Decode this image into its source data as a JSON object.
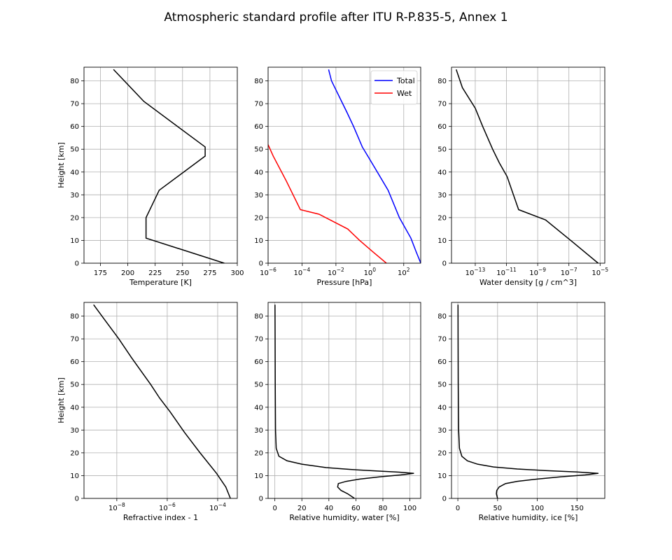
{
  "figure": {
    "title": "Atmospheric standard profile after ITU R-P.835-5, Annex 1"
  },
  "colors": {
    "black": "#000000",
    "total": "#0000ff",
    "wet": "#ff0000",
    "grid": "#b0b0b0"
  },
  "chart_data": [
    {
      "type": "line",
      "id": "temperature",
      "xlabel": "Temperature [K]",
      "ylabel": "Height [km]",
      "xscale": "linear",
      "xlim": [
        160,
        300
      ],
      "ylim": [
        0,
        86
      ],
      "grid": true,
      "xticks": [
        175,
        200,
        225,
        250,
        275,
        300
      ],
      "xticklabels": [
        "175",
        "200",
        "225",
        "250",
        "275",
        "300"
      ],
      "yticks": [
        0,
        10,
        20,
        30,
        40,
        50,
        60,
        70,
        80
      ],
      "yticklabels": [
        "0",
        "10",
        "20",
        "30",
        "40",
        "50",
        "60",
        "70",
        "80"
      ],
      "series": [
        {
          "color": "#000000",
          "x": [
            288.15,
            216.65,
            216.65,
            228.65,
            270.65,
            270.65,
            214.65,
            186.95
          ],
          "y": [
            0,
            11,
            20,
            32,
            47,
            51,
            71,
            85
          ]
        }
      ]
    },
    {
      "type": "line",
      "id": "pressure",
      "xlabel": "Pressure [hPa]",
      "ylabel": "",
      "xscale": "log",
      "xlim": [
        1e-06,
        1000
      ],
      "ylim": [
        0,
        86
      ],
      "grid": true,
      "legend": "top-right",
      "xticks": [
        1e-06,
        0.0001,
        0.01,
        1,
        100
      ],
      "xticklabels": [
        [
          "10",
          "−6"
        ],
        [
          "10",
          "−4"
        ],
        [
          "10",
          "−2"
        ],
        [
          "10",
          "0"
        ],
        [
          "10",
          "2"
        ]
      ],
      "yticks": [
        0,
        10,
        20,
        30,
        40,
        50,
        60,
        70,
        80
      ],
      "yticklabels": [
        "0",
        "10",
        "20",
        "30",
        "40",
        "50",
        "60",
        "70",
        "80"
      ],
      "series": [
        {
          "name": "Total",
          "color": "#0000ff",
          "x": [
            1013.25,
            540.5,
            264.0,
            55.3,
            12.0,
            2.3,
            0.76,
            0.36,
            0.11,
            0.046,
            0.0055,
            0.0037
          ],
          "y": [
            0,
            5,
            11,
            20,
            32,
            41,
            47,
            51,
            60,
            66,
            80,
            85
          ]
        },
        {
          "name": "Wet",
          "color": "#ff0000",
          "x": [
            9.5,
            1.5,
            0.25,
            0.05,
            0.001,
            8e-05,
            1.2e-05,
            2e-06,
            1e-06
          ],
          "y": [
            0,
            5,
            10,
            15,
            21.5,
            23.5,
            36,
            47,
            52
          ]
        }
      ]
    },
    {
      "type": "line",
      "id": "water_density",
      "xlabel": "Water density [g / cm^3]",
      "ylabel": "",
      "xscale": "log",
      "xlim": [
        3e-15,
        2e-05
      ],
      "ylim": [
        0,
        86
      ],
      "grid": true,
      "xticks": [
        1e-13,
        1e-11,
        1e-09,
        1e-07,
        1e-05
      ],
      "xticklabels": [
        [
          "10",
          "−13"
        ],
        [
          "10",
          "−11"
        ],
        [
          "10",
          "−9"
        ],
        [
          "10",
          "−7"
        ],
        [
          "10",
          "−5"
        ]
      ],
      "yticks": [
        0,
        10,
        20,
        30,
        40,
        50,
        60,
        70,
        80
      ],
      "yticklabels": [
        "0",
        "10",
        "20",
        "30",
        "40",
        "50",
        "60",
        "70",
        "80"
      ],
      "series": [
        {
          "color": "#000000",
          "x": [
            7.5e-06,
            1.6e-07,
            3.2e-09,
            6e-11,
            2.8e-11,
            1.1e-11,
            3.5e-12,
            1.3e-12,
            3e-13,
            1e-13,
            1.5e-14,
            6e-15
          ],
          "y": [
            0,
            9.5,
            19,
            23.5,
            30,
            38,
            44,
            50,
            60,
            68,
            77,
            85
          ]
        }
      ]
    },
    {
      "type": "line",
      "id": "refractive_index",
      "xlabel": "Refractive index - 1",
      "ylabel": "Height [km]",
      "xscale": "log",
      "xlim": [
        5e-10,
        0.0006
      ],
      "ylim": [
        0,
        86
      ],
      "grid": true,
      "xticks": [
        1e-08,
        1e-06,
        0.0001
      ],
      "xticklabels": [
        [
          "10",
          "−8"
        ],
        [
          "10",
          "−6"
        ],
        [
          "10",
          "−4"
        ]
      ],
      "yticks": [
        0,
        10,
        20,
        30,
        40,
        50,
        60,
        70,
        80
      ],
      "yticklabels": [
        "0",
        "10",
        "20",
        "30",
        "40",
        "50",
        "60",
        "70",
        "80"
      ],
      "series": [
        {
          "color": "#000000",
          "x": [
            0.00032,
            0.00021,
            9e-05,
            2e-05,
            4.8e-06,
            1.3e-06,
            5e-07,
            2.2e-07,
            9e-08,
            3.7e-08,
            1.2e-08,
            3.5e-09,
            1.2e-09
          ],
          "y": [
            0,
            5,
            11,
            20,
            29,
            38,
            44,
            50,
            56,
            62,
            70,
            78,
            85
          ]
        }
      ]
    },
    {
      "type": "line",
      "id": "rh_water",
      "xlabel": "Relative humidity, water [%]",
      "ylabel": "",
      "xscale": "linear",
      "xlim": [
        -5,
        108
      ],
      "ylim": [
        0,
        86
      ],
      "grid": true,
      "xticks": [
        0,
        20,
        40,
        60,
        80,
        100
      ],
      "xticklabels": [
        "0",
        "20",
        "40",
        "60",
        "80",
        "100"
      ],
      "yticks": [
        0,
        10,
        20,
        30,
        40,
        50,
        60,
        70,
        80
      ],
      "yticklabels": [
        "0",
        "10",
        "20",
        "30",
        "40",
        "50",
        "60",
        "70",
        "80"
      ],
      "series": [
        {
          "color": "#000000",
          "x": [
            59,
            54,
            49,
            46.5,
            47,
            53,
            63,
            78,
            93,
            103,
            92,
            76,
            56,
            38,
            20,
            9,
            3,
            1,
            0.5,
            0.3,
            0.2,
            0.1
          ],
          "y": [
            0,
            2,
            3.5,
            5,
            6.5,
            7.5,
            8.5,
            9.5,
            10.3,
            11,
            11.5,
            12,
            12.7,
            13.5,
            15,
            16.5,
            18.5,
            22,
            30,
            50,
            70,
            85
          ]
        }
      ]
    },
    {
      "type": "line",
      "id": "rh_ice",
      "xlabel": "Relative humidity, ice [%]",
      "ylabel": "",
      "xscale": "linear",
      "xlim": [
        -8,
        185
      ],
      "ylim": [
        0,
        86
      ],
      "grid": true,
      "xticks": [
        0,
        50,
        100,
        150
      ],
      "xticklabels": [
        "0",
        "50",
        "100",
        "150"
      ],
      "yticks": [
        0,
        10,
        20,
        30,
        40,
        50,
        60,
        70,
        80
      ],
      "yticklabels": [
        "0",
        "10",
        "20",
        "30",
        "40",
        "50",
        "60",
        "70",
        "80"
      ],
      "series": [
        {
          "color": "#000000",
          "x": [
            50,
            48.5,
            49,
            52,
            60,
            75,
            100,
            130,
            160,
            177,
            150,
            110,
            75,
            45,
            25,
            12,
            5,
            2,
            1,
            0.5,
            0.3,
            0.2
          ],
          "y": [
            0,
            2,
            3.5,
            5,
            6.5,
            7.5,
            8.5,
            9.5,
            10.3,
            11,
            11.6,
            12.2,
            12.9,
            13.8,
            15,
            16.5,
            18.5,
            22,
            30,
            50,
            70,
            85
          ]
        }
      ]
    }
  ]
}
